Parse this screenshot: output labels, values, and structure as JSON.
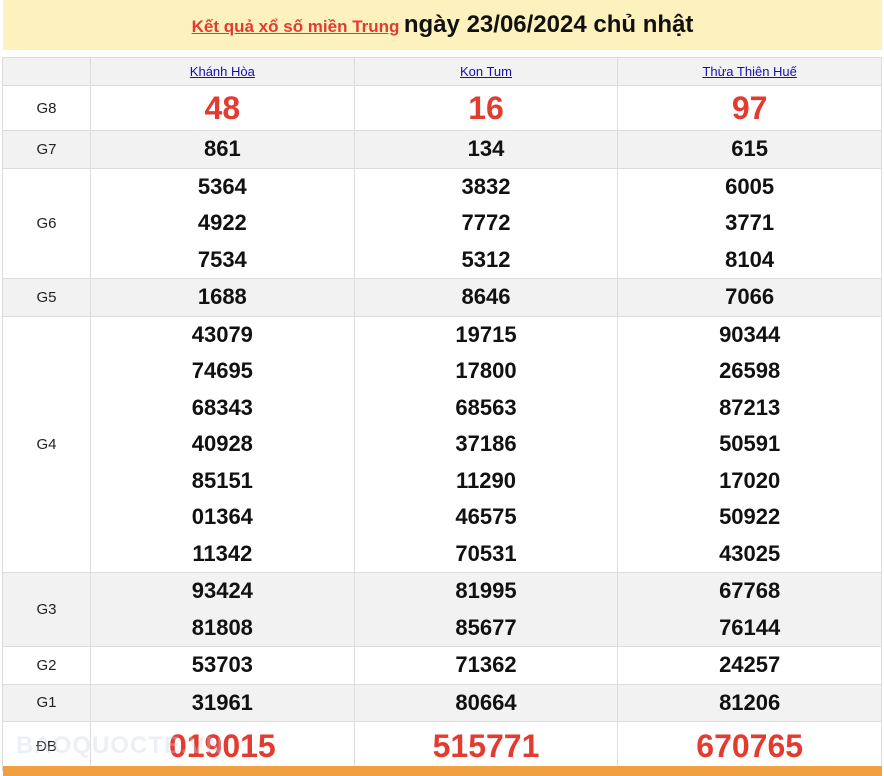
{
  "title": {
    "link": "Kết quả xổ số miền Trung",
    "text": "ngày 23/06/2024 chủ nhật"
  },
  "provinces": [
    "Khánh Hòa",
    "Kon Tum",
    "Thừa Thiên Huế"
  ],
  "prizes": [
    {
      "label": "G8",
      "values": [
        [
          "48"
        ],
        [
          "16"
        ],
        [
          "97"
        ]
      ]
    },
    {
      "label": "G7",
      "values": [
        [
          "861"
        ],
        [
          "134"
        ],
        [
          "615"
        ]
      ]
    },
    {
      "label": "G6",
      "values": [
        [
          "5364",
          "4922",
          "7534"
        ],
        [
          "3832",
          "7772",
          "5312"
        ],
        [
          "6005",
          "3771",
          "8104"
        ]
      ]
    },
    {
      "label": "G5",
      "values": [
        [
          "1688"
        ],
        [
          "8646"
        ],
        [
          "7066"
        ]
      ]
    },
    {
      "label": "G4",
      "values": [
        [
          "43079",
          "74695",
          "68343",
          "40928",
          "85151",
          "01364",
          "11342"
        ],
        [
          "19715",
          "17800",
          "68563",
          "37186",
          "11290",
          "46575",
          "70531"
        ],
        [
          "90344",
          "26598",
          "87213",
          "50591",
          "17020",
          "50922",
          "43025"
        ]
      ]
    },
    {
      "label": "G3",
      "values": [
        [
          "93424",
          "81808"
        ],
        [
          "81995",
          "85677"
        ],
        [
          "67768",
          "76144"
        ]
      ]
    },
    {
      "label": "G2",
      "values": [
        [
          "53703"
        ],
        [
          "71362"
        ],
        [
          "24257"
        ]
      ]
    },
    {
      "label": "G1",
      "values": [
        [
          "31961"
        ],
        [
          "80664"
        ],
        [
          "81206"
        ]
      ]
    },
    {
      "label": "ĐB",
      "values": [
        [
          "019015"
        ],
        [
          "515771"
        ],
        [
          "670765"
        ]
      ]
    }
  ],
  "watermark": "BAOQUOCTE.VN",
  "colors": {
    "accent": "#e33b2f",
    "title_bg": "#fdf1bd",
    "link": "#1a0dab",
    "bottom_bar": "#f0a040"
  }
}
